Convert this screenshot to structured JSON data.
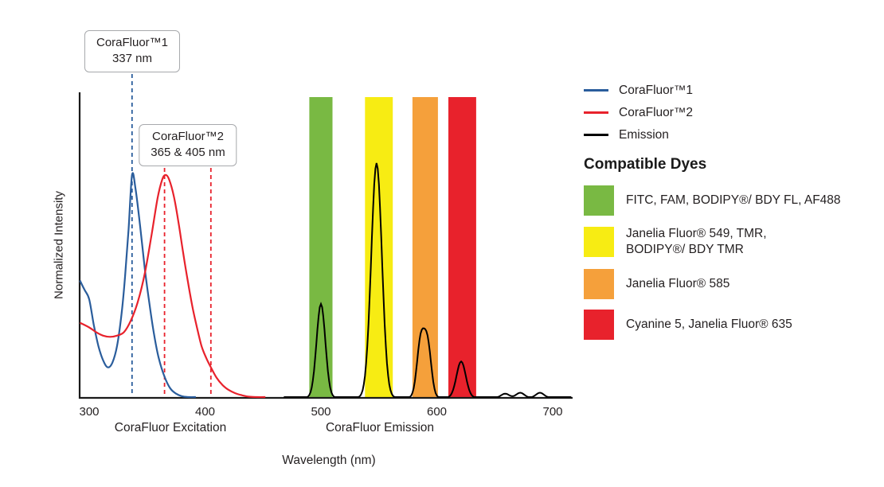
{
  "chart": {
    "y_axis_label": "Normalized Intensity",
    "x_axis_label": "Wavelength (nm)",
    "x_section_labels": [
      {
        "label": "CoraFluor Excitation",
        "center_nm": 370
      },
      {
        "label": "CoraFluor Emission",
        "center_nm": 551
      }
    ]
  },
  "callouts": [
    {
      "line1": "CoraFluor™1",
      "line2": "337 nm",
      "marker_nms": [
        337
      ],
      "color": "#2A5D9C"
    },
    {
      "line1": "CoraFluor™2",
      "line2": "365 & 405 nm",
      "marker_nms": [
        365,
        405
      ],
      "color": "#E8222C"
    }
  ],
  "legend": {
    "lines": [
      {
        "label": "CoraFluor™1",
        "color": "#2A5D9C"
      },
      {
        "label": "CoraFluor™2",
        "color": "#E8222C"
      },
      {
        "label": "Emission",
        "color": "#000000"
      }
    ],
    "dyes_heading": "Compatible Dyes",
    "dyes": [
      {
        "label": "FITC, FAM, BODIPY®/ BDY FL, AF488",
        "color": "#79B943"
      },
      {
        "label": "Janelia Fluor® 549, TMR,\nBODIPY®/ BDY TMR",
        "color": "#F7EC13"
      },
      {
        "label": "Janelia Fluor® 585",
        "color": "#F5A03B"
      },
      {
        "label": "Cyanine 5, Janelia Fluor® 635",
        "color": "#E8222C"
      }
    ]
  },
  "chart_data": {
    "type": "line",
    "title": "CoraFluor excitation and emission spectra with compatible dye filter bands",
    "xlabel": "Wavelength (nm)",
    "ylabel": "Normalized Intensity",
    "x_range": [
      300,
      718
    ],
    "y_range": [
      0,
      1
    ],
    "x_ticks": [
      300,
      400,
      500,
      600,
      700
    ],
    "excitation_markers_nm": {
      "CoraFluor1": [
        337
      ],
      "CoraFluor2": [
        365,
        405
      ]
    },
    "bands": [
      {
        "name": "FITC-FAM-BODIPY-FL-AF488",
        "range": [
          490,
          510
        ],
        "color": "#79B943"
      },
      {
        "name": "JF549-TMR-BODIPY-TMR",
        "range": [
          538,
          562
        ],
        "color": "#F7EC13"
      },
      {
        "name": "JF585",
        "range": [
          579,
          601
        ],
        "color": "#F5A03B"
      },
      {
        "name": "Cy5-JF635",
        "range": [
          610,
          634
        ],
        "color": "#E8222C"
      }
    ],
    "series": [
      {
        "name": "CoraFluor1-excitation",
        "color": "#2A5D9C",
        "points": [
          [
            292,
            0.5
          ],
          [
            296,
            0.46
          ],
          [
            300,
            0.42
          ],
          [
            304,
            0.31
          ],
          [
            308,
            0.22
          ],
          [
            312,
            0.16
          ],
          [
            316,
            0.13
          ],
          [
            320,
            0.15
          ],
          [
            324,
            0.22
          ],
          [
            328,
            0.36
          ],
          [
            331,
            0.52
          ],
          [
            334,
            0.72
          ],
          [
            337,
            0.95
          ],
          [
            340,
            0.89
          ],
          [
            344,
            0.73
          ],
          [
            348,
            0.55
          ],
          [
            352,
            0.4
          ],
          [
            356,
            0.27
          ],
          [
            360,
            0.17
          ],
          [
            365,
            0.09
          ],
          [
            370,
            0.04
          ],
          [
            375,
            0.018
          ],
          [
            380,
            0.007
          ],
          [
            386,
            0.002
          ],
          [
            392,
            0
          ]
        ]
      },
      {
        "name": "CoraFluor2-excitation",
        "color": "#E8222C",
        "points": [
          [
            292,
            0.32
          ],
          [
            300,
            0.3
          ],
          [
            306,
            0.28
          ],
          [
            312,
            0.265
          ],
          [
            318,
            0.26
          ],
          [
            324,
            0.265
          ],
          [
            330,
            0.28
          ],
          [
            336,
            0.33
          ],
          [
            342,
            0.41
          ],
          [
            348,
            0.53
          ],
          [
            354,
            0.7
          ],
          [
            359,
            0.85
          ],
          [
            363,
            0.93
          ],
          [
            366,
            0.95
          ],
          [
            369,
            0.93
          ],
          [
            373,
            0.86
          ],
          [
            377,
            0.75
          ],
          [
            381,
            0.62
          ],
          [
            385,
            0.5
          ],
          [
            389,
            0.39
          ],
          [
            393,
            0.3
          ],
          [
            397,
            0.22
          ],
          [
            401,
            0.17
          ],
          [
            405,
            0.13
          ],
          [
            410,
            0.085
          ],
          [
            415,
            0.055
          ],
          [
            420,
            0.035
          ],
          [
            426,
            0.02
          ],
          [
            432,
            0.011
          ],
          [
            438,
            0.005
          ],
          [
            445,
            0.002
          ],
          [
            452,
            0
          ]
        ]
      }
    ],
    "emission_series": {
      "name": "Emission",
      "color": "#000000",
      "peaks": [
        {
          "center": 500,
          "height": 0.4,
          "sigma": 3.8
        },
        {
          "center": 548,
          "height": 1.0,
          "sigma": 4.6
        },
        {
          "center": 586,
          "height": 0.235,
          "sigma": 3.2
        },
        {
          "center": 592,
          "height": 0.225,
          "sigma": 3.2
        },
        {
          "center": 621,
          "height": 0.155,
          "sigma": 4.0
        },
        {
          "center": 659,
          "height": 0.018,
          "sigma": 3.5
        },
        {
          "center": 672,
          "height": 0.022,
          "sigma": 3.5
        },
        {
          "center": 689,
          "height": 0.022,
          "sigma": 3.5
        }
      ]
    }
  }
}
